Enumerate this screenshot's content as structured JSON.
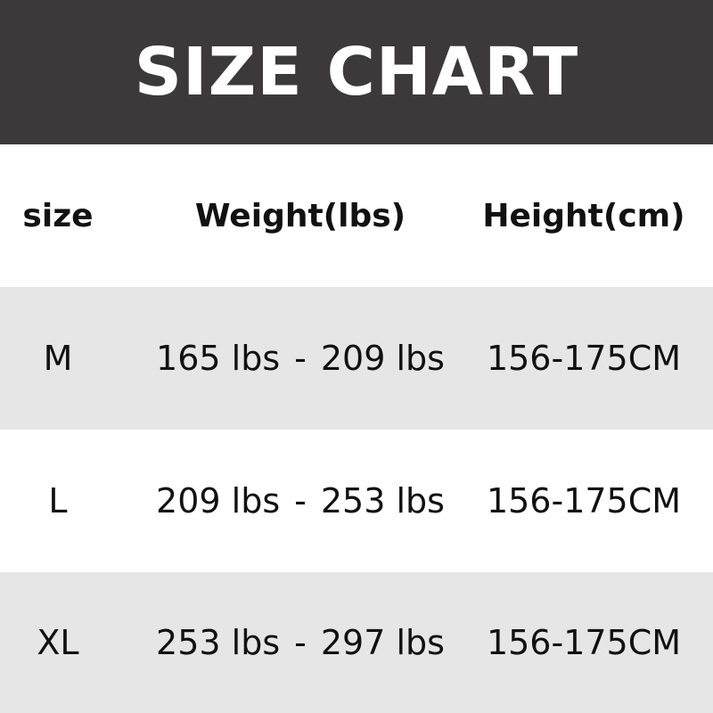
{
  "title": "SIZE CHART",
  "headers": [
    "size",
    "Weight(lbs)",
    "Height(cm)"
  ],
  "rows": [
    {
      "size": "M",
      "weight_min": "165 lbs",
      "weight_max": "209 lbs",
      "height": "156-175CM"
    },
    {
      "size": "L",
      "weight_min": "209 lbs",
      "weight_max": "253 lbs",
      "height": "156-175CM"
    },
    {
      "size": "XL",
      "weight_min": "253 lbs",
      "weight_max": "297 lbs",
      "height": "156-175CM"
    }
  ],
  "separator": "-",
  "colors": {
    "banner": "#3b3939",
    "stripe": "#e6e6e6"
  }
}
